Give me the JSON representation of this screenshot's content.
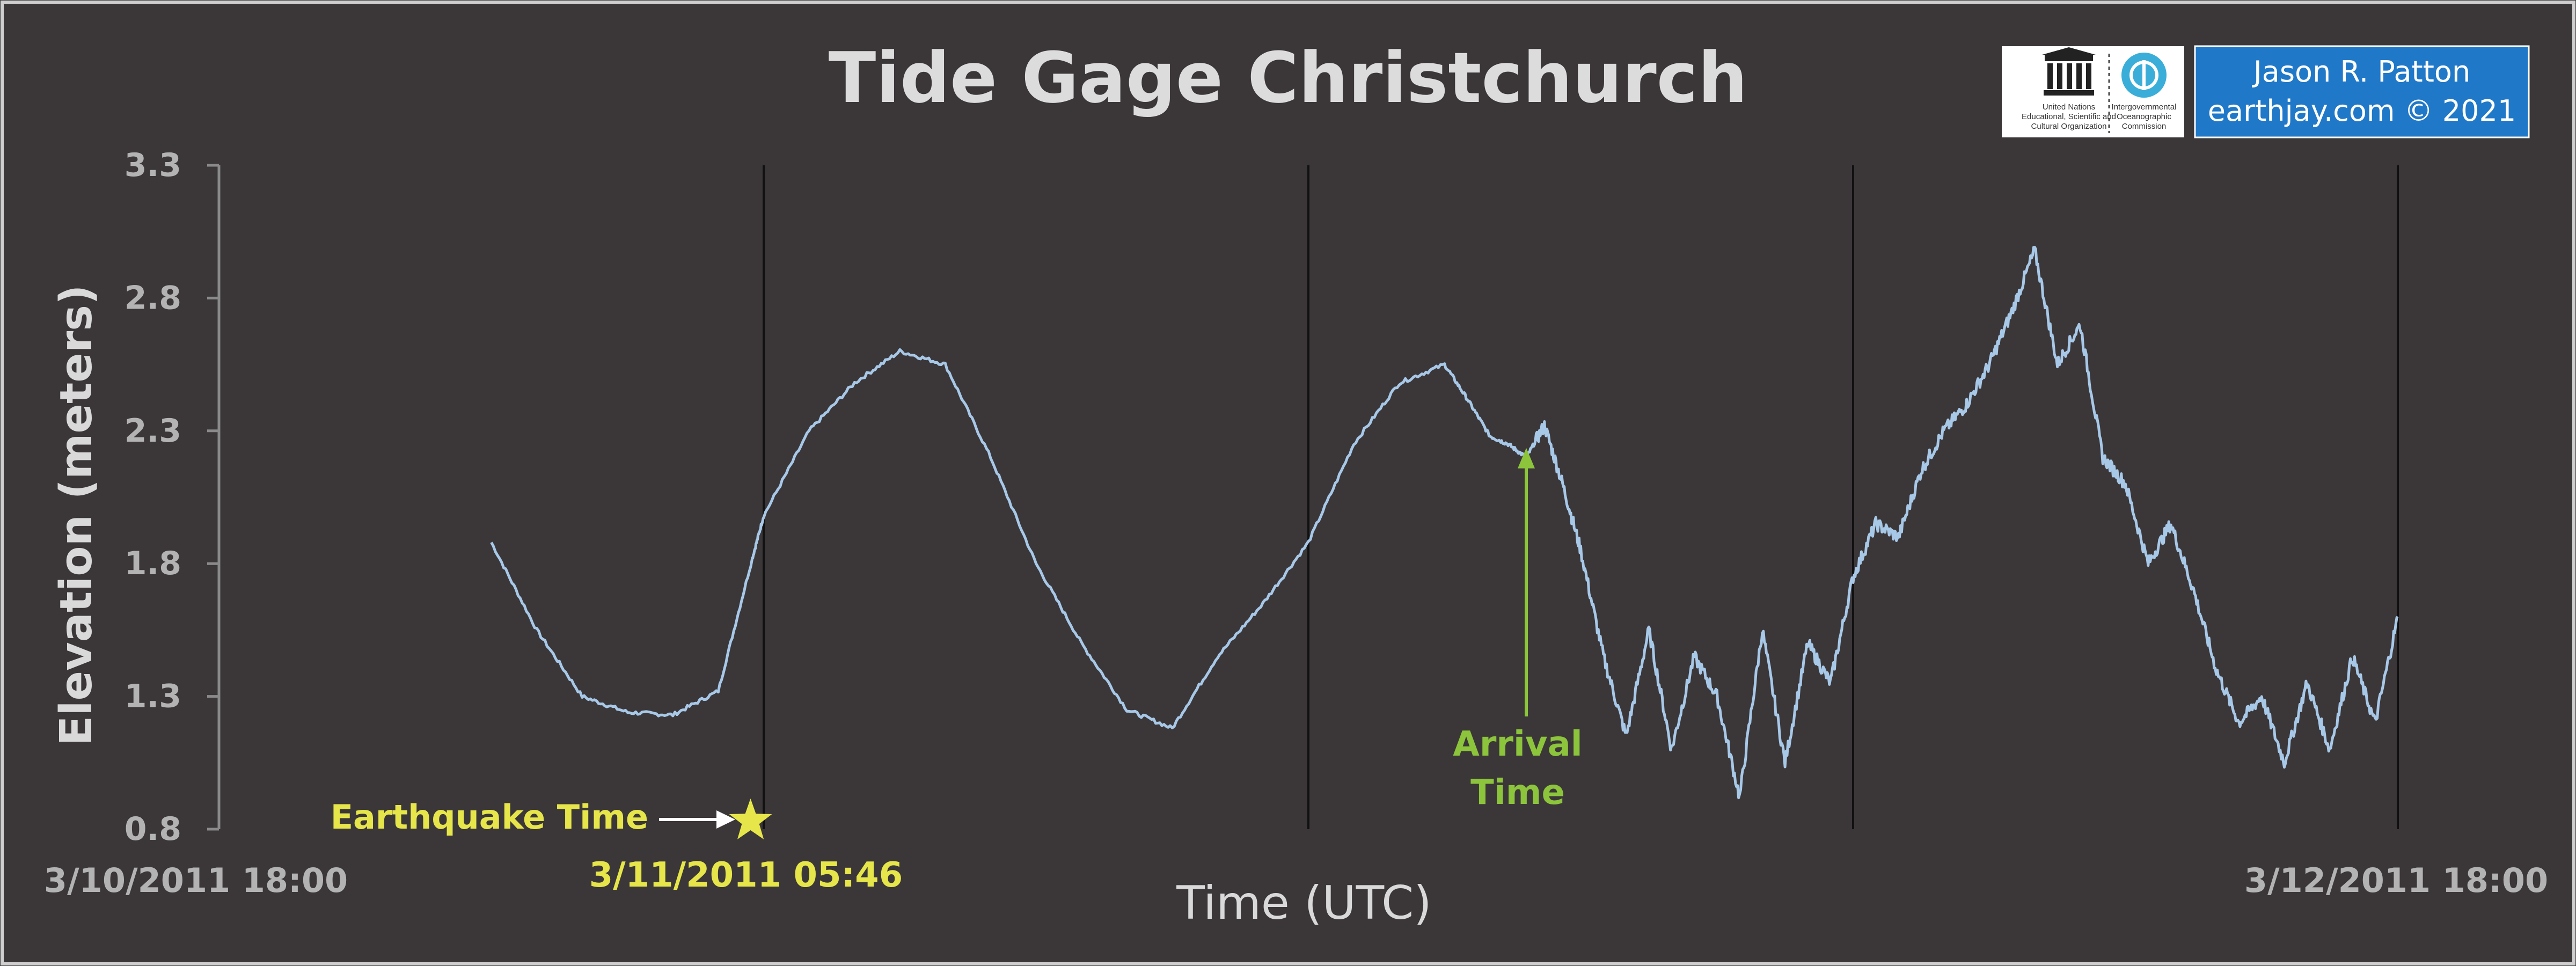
{
  "chart_data": {
    "type": "line",
    "title": "Tide Gage Christchurch",
    "xlabel": "Time (UTC)",
    "ylabel": "Elevation (meters)",
    "x_range": [
      "3/10/2011 18:00",
      "3/12/2011 18:00"
    ],
    "ylim": [
      0.8,
      3.3
    ],
    "yticks": [
      "3.3",
      "2.8",
      "2.3",
      "1.8",
      "1.3",
      "0.8"
    ],
    "xtick_labels": {
      "start": "3/10/2011 18:00",
      "end": "3/12/2011 18:00"
    },
    "grid": "vertical lines every 12 hours",
    "legend": "none",
    "series_color": "#a8c8e8",
    "series": [
      {
        "x_hours_from_start": [
          6,
          7,
          8,
          9,
          10,
          11,
          11.75,
          12,
          13,
          14,
          15,
          16,
          17,
          18,
          19,
          20,
          21,
          22,
          23,
          24,
          25,
          26,
          27,
          27.5,
          28,
          28.4,
          28.8,
          29.2,
          29.6,
          30,
          30.5,
          31,
          31.5,
          32,
          32.5,
          33,
          33.5,
          34,
          34.5,
          35,
          35.5,
          36,
          36.5,
          37,
          37.5,
          38,
          38.5,
          39,
          39.5,
          40,
          40.5,
          41,
          41.5,
          42,
          42.5,
          43,
          43.5,
          44,
          44.5,
          45,
          45.5,
          46,
          46.5,
          47,
          47.5,
          48
        ],
        "y": [
          1.88,
          1.55,
          1.3,
          1.24,
          1.23,
          1.32,
          1.82,
          1.98,
          2.3,
          2.48,
          2.6,
          2.55,
          2.2,
          1.8,
          1.5,
          1.25,
          1.18,
          1.45,
          1.65,
          1.88,
          2.25,
          2.48,
          2.55,
          2.42,
          2.28,
          2.25,
          2.2,
          2.32,
          2.1,
          1.85,
          1.45,
          1.15,
          1.55,
          1.1,
          1.45,
          1.3,
          0.92,
          1.55,
          1.05,
          1.5,
          1.35,
          1.75,
          1.95,
          1.9,
          2.15,
          2.3,
          2.4,
          2.55,
          2.75,
          2.98,
          2.55,
          2.7,
          2.2,
          2.1,
          1.8,
          1.95,
          1.7,
          1.4,
          1.2,
          1.3,
          1.05,
          1.35,
          1.1,
          1.45,
          1.2,
          1.6
        ]
      }
    ],
    "annotations": [
      {
        "text": "Earthquake Time",
        "color": "#e6e64a"
      },
      {
        "text": "3/11/2011 05:46",
        "color": "#e6e64a",
        "x_hours_from_start": 11.77
      },
      {
        "text_lines": [
          "Arrival",
          "Time"
        ],
        "color": "#8cc43c",
        "x_hours_from_start": 28.8,
        "y": 2.28
      }
    ]
  },
  "credits": {
    "org_line_1": "United Nations",
    "org_line_2": "Educational, Scientific and",
    "org_line_3": "Cultural Organization",
    "ioc_line_1": "Intergovernmental",
    "ioc_line_2": "Oceanographic",
    "ioc_line_3": "Commission",
    "author": "Jason R. Patton",
    "website": "earthjay.com © 2021",
    "box_color": "#1f78c8"
  }
}
